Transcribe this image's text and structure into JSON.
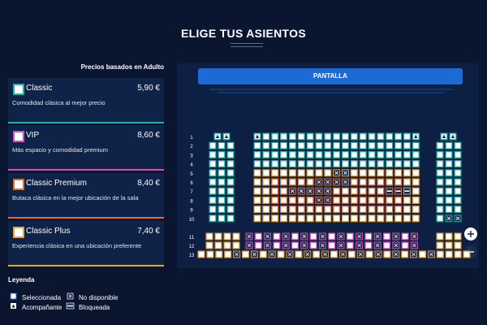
{
  "header": {
    "title": "ELIGE TUS ASIENTOS"
  },
  "prices_note": "Precios basados en Adulto",
  "categories": [
    {
      "name": "Classic",
      "price": "5,90 €",
      "description": "Comodidad clásica al mejor precio"
    },
    {
      "name": "VIP",
      "price": "8,60 €",
      "description": "Más espacio y comodidad premium"
    },
    {
      "name": "Classic Premium",
      "price": "8,40 €",
      "description": "Butaca clásica en la mejor ubicación de la sala"
    },
    {
      "name": "Classic Plus",
      "price": "7,40 €",
      "description": "Experiencia clásica en una ubicación preferente"
    }
  ],
  "screen": "PANTALLA",
  "rows": [
    "1",
    "2",
    "3",
    "4",
    "5",
    "6",
    "7",
    "8",
    "9",
    "10",
    "11",
    "12",
    "13"
  ],
  "legend": {
    "title": "Leyenda",
    "items": [
      "Seleccionada",
      "No disponible",
      "Acompañante",
      "Bloqueada"
    ]
  }
}
